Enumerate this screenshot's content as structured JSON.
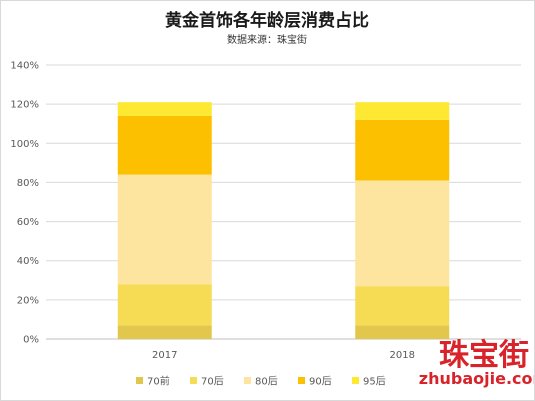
{
  "chart_data": {
    "type": "bar",
    "stacked": true,
    "title": "黄金首饰各年龄层消费占比",
    "subtitle": "数据来源：珠宝街",
    "categories": [
      "2017",
      "2018"
    ],
    "ylim": [
      0,
      140
    ],
    "yticks": [
      0,
      20,
      40,
      60,
      80,
      100,
      120,
      140
    ],
    "ytick_labels": [
      "0%",
      "20%",
      "40%",
      "60%",
      "80%",
      "100%",
      "120%",
      "140%"
    ],
    "grid": true,
    "legend_position": "bottom",
    "series": [
      {
        "name": "70前",
        "color": "#e3c74d",
        "values": [
          7,
          7
        ]
      },
      {
        "name": "70后",
        "color": "#f6dc55",
        "values": [
          21,
          20
        ]
      },
      {
        "name": "80后",
        "color": "#fde59f",
        "values": [
          56,
          54
        ]
      },
      {
        "name": "90后",
        "color": "#fdc001",
        "values": [
          30,
          31
        ]
      },
      {
        "name": "95后",
        "color": "#fde832",
        "values": [
          7,
          9
        ]
      }
    ]
  },
  "watermark": {
    "text_cn": "珠宝街",
    "text_en": "zhubaojie.com",
    "color": "#d8232a"
  }
}
